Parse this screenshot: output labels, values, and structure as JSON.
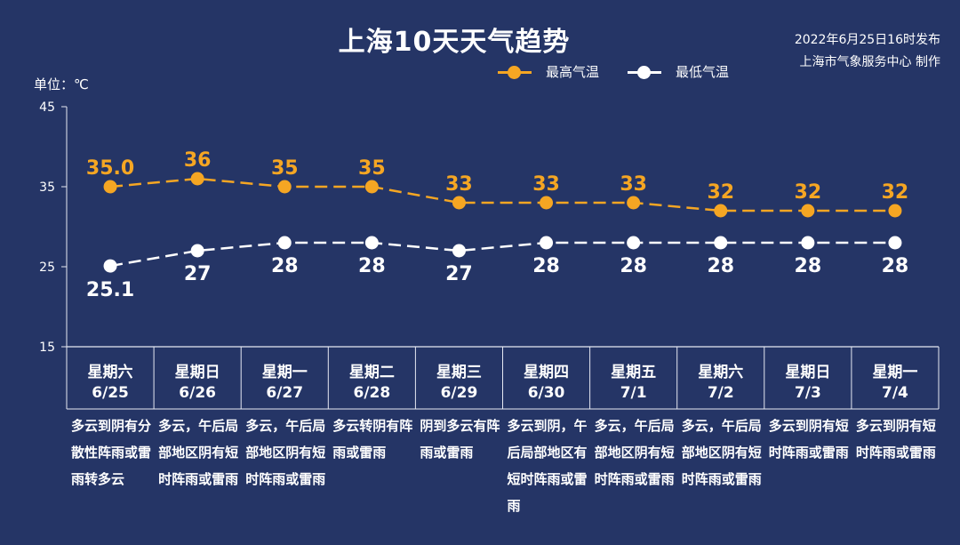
{
  "header": {
    "title": "上海10天天气趋势",
    "issued": "2022年6月25日16时发布",
    "publisher": "上海市气象服务中心 制作",
    "unit": "单位：℃"
  },
  "colors": {
    "background": "#253566",
    "high": "#f5a623",
    "low": "#ffffff",
    "axis": "#e6e9f2"
  },
  "chart_data": {
    "type": "line",
    "ylim": [
      15,
      45
    ],
    "yticks": [
      15,
      25,
      35,
      45
    ],
    "categories": [
      "6/25",
      "6/26",
      "6/27",
      "6/28",
      "6/29",
      "6/30",
      "7/1",
      "7/2",
      "7/3",
      "7/4"
    ],
    "weekdays": [
      "星期六",
      "星期日",
      "星期一",
      "星期二",
      "星期三",
      "星期四",
      "星期五",
      "星期六",
      "星期日",
      "星期一"
    ],
    "series": [
      {
        "name": "最高气温",
        "color": "#f5a623",
        "values": [
          35.0,
          36,
          35,
          35,
          33,
          33,
          33,
          32,
          32,
          32
        ],
        "labels": [
          "35.0",
          "36",
          "35",
          "35",
          "33",
          "33",
          "33",
          "32",
          "32",
          "32"
        ]
      },
      {
        "name": "最低气温",
        "color": "#ffffff",
        "values": [
          25.1,
          27,
          28,
          28,
          27,
          28,
          28,
          28,
          28,
          28
        ],
        "labels": [
          "25.1",
          "27",
          "28",
          "28",
          "27",
          "28",
          "28",
          "28",
          "28",
          "28"
        ]
      }
    ],
    "descriptions": [
      "多云到阴有分散性阵雨或雷雨转多云",
      "多云，午后局部地区阴有短时阵雨或雷雨",
      "多云，午后局部地区阴有短时阵雨或雷雨",
      "多云转阴有阵雨或雷雨",
      "阴到多云有阵雨或雷雨",
      "多云到阴，午后局部地区有短时阵雨或雷雨",
      "多云，午后局部地区阴有短时阵雨或雷雨",
      "多云，午后局部地区阴有短时阵雨或雷雨",
      "多云到阴有短时阵雨或雷雨",
      "多云到阴有短时阵雨或雷雨"
    ]
  }
}
